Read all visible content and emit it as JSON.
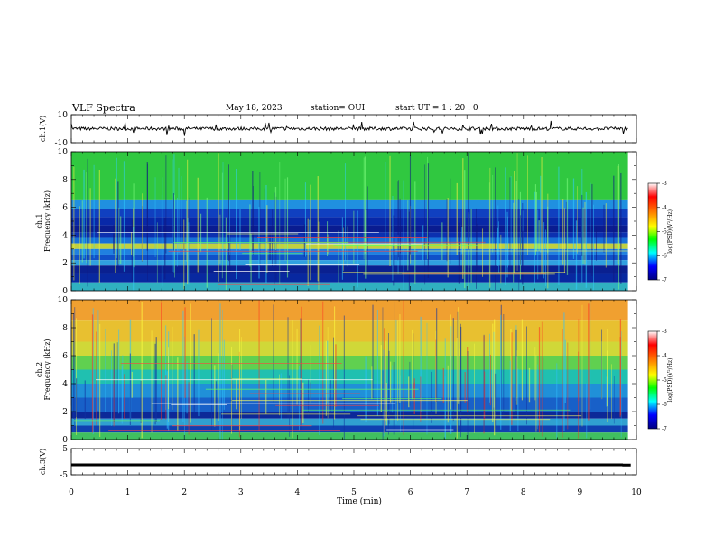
{
  "header": {
    "title": "VLF Spectra",
    "date": "May 18, 2023",
    "station": "station= OUI",
    "start": "start  UT =   1 : 20 : 0"
  },
  "chart_data": [
    {
      "type": "line",
      "name": "ch1-waveform",
      "ylabel": "ch.1(V)",
      "ylim": [
        -10,
        10
      ],
      "yticks": [
        "10",
        "-10"
      ],
      "x": [
        0,
        0.5,
        1,
        1.5,
        2,
        2.5,
        3,
        3.5,
        4,
        4.5,
        5,
        5.5,
        6,
        6.5,
        7,
        7.5,
        8,
        8.5,
        9,
        9.5,
        9.8
      ],
      "values": [
        0.2,
        0.1,
        0,
        0.1,
        0.2,
        0.1,
        0,
        0.2,
        0.1,
        0,
        0.1,
        0.2,
        0,
        0.1,
        0.2,
        0.1,
        0,
        0.1,
        0.2,
        0.1,
        0
      ]
    },
    {
      "type": "heatmap",
      "name": "ch1-spectrogram",
      "ylabel": "ch.1\nFrequency (kHz)",
      "ylim": [
        0,
        10
      ],
      "yticks": [
        "0",
        "2",
        "4",
        "6",
        "8",
        "10"
      ],
      "colorbar": {
        "ticks": [
          "-3",
          "-4",
          "-5",
          "-6",
          "-7"
        ],
        "label": "log(PSD)(V²/Hz)"
      },
      "band_rows_khz_top_to_bottom": [
        [
          10.0,
          6.5,
          "#30c840"
        ],
        [
          6.5,
          5.9,
          "#2090e0"
        ],
        [
          5.9,
          5.3,
          "#1040c0"
        ],
        [
          5.3,
          4.7,
          "#0828a8"
        ],
        [
          4.7,
          4.2,
          "#0a1c90"
        ],
        [
          4.2,
          3.8,
          "#0c30b0"
        ],
        [
          3.8,
          3.4,
          "#1870d8"
        ],
        [
          3.4,
          3.0,
          "#c0d040"
        ],
        [
          3.0,
          2.6,
          "#2080e0"
        ],
        [
          2.6,
          2.2,
          "#1050c8"
        ],
        [
          2.2,
          1.8,
          "#30a0e0"
        ],
        [
          1.8,
          1.2,
          "#0a2090"
        ],
        [
          1.2,
          0.6,
          "#0828a0"
        ],
        [
          0.6,
          0.0,
          "#30b0c0"
        ]
      ]
    },
    {
      "type": "heatmap",
      "name": "ch2-spectrogram",
      "ylabel": "ch.2\nFrequency (kHz)",
      "ylim": [
        0,
        10
      ],
      "yticks": [
        "0",
        "2",
        "4",
        "6",
        "8",
        "10"
      ],
      "colorbar": {
        "ticks": [
          "-3",
          "-4",
          "-5",
          "-6",
          "-7"
        ],
        "label": "log(PSD)(V²/Hz)"
      },
      "band_rows_khz_top_to_bottom": [
        [
          10.0,
          8.5,
          "#f0a030"
        ],
        [
          8.5,
          7.0,
          "#e8c030"
        ],
        [
          7.0,
          6.0,
          "#d0d838"
        ],
        [
          6.0,
          5.0,
          "#60d050"
        ],
        [
          5.0,
          4.0,
          "#20c0b0"
        ],
        [
          4.0,
          3.0,
          "#2090d8"
        ],
        [
          3.0,
          2.0,
          "#1860c8"
        ],
        [
          2.0,
          1.5,
          "#0c2898"
        ],
        [
          1.5,
          1.0,
          "#30a0d0"
        ],
        [
          1.0,
          0.5,
          "#1040b0"
        ],
        [
          0.5,
          0.0,
          "#40c060"
        ]
      ]
    },
    {
      "type": "line",
      "name": "ch3-waveform",
      "ylabel": "ch.3(V)",
      "ylim": [
        -5,
        5
      ],
      "yticks": [
        "5",
        "-5"
      ],
      "x": [
        0,
        9.75,
        9.76,
        9.9
      ],
      "values": [
        -1.2,
        -1.2,
        -1.3,
        -1.3
      ]
    }
  ],
  "xaxis": {
    "label": "Time (min)",
    "xlim": [
      0,
      10
    ],
    "ticks": [
      "0",
      "1",
      "2",
      "3",
      "4",
      "5",
      "6",
      "7",
      "8",
      "9",
      "10"
    ]
  },
  "colors": {
    "trace": "#000000",
    "colormap": [
      "#ff0000",
      "#ff8000",
      "#ffff00",
      "#00ff00",
      "#00ffff",
      "#0000ff",
      "#000080"
    ]
  }
}
